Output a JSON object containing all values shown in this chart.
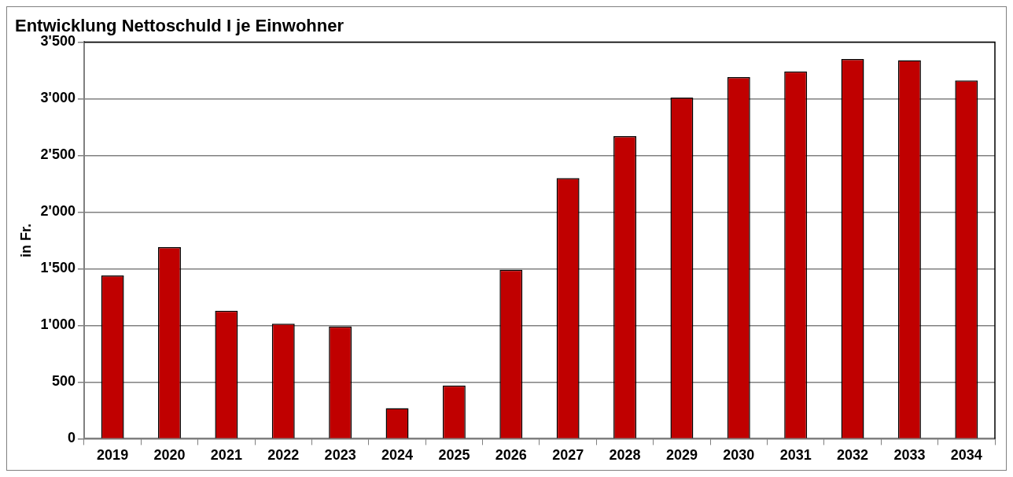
{
  "chart_data": {
    "type": "bar",
    "title": "Entwicklung Nettoschuld I je Einwohner",
    "ylabel": "in Fr.",
    "categories": [
      "2019",
      "2020",
      "2021",
      "2022",
      "2023",
      "2024",
      "2025",
      "2026",
      "2027",
      "2028",
      "2029",
      "2030",
      "2031",
      "2032",
      "2033",
      "2034"
    ],
    "values": [
      1440,
      1690,
      1130,
      1015,
      990,
      270,
      470,
      1490,
      2300,
      2670,
      3010,
      3190,
      3240,
      3350,
      3340,
      3160
    ],
    "color": "#c00000",
    "ylim": [
      0,
      3500
    ],
    "yticks": [
      0,
      500,
      {
        "value": 1000,
        "label": "1'000"
      },
      {
        "value": 1500,
        "label": "1'500"
      },
      {
        "value": 2000,
        "label": "2'000"
      },
      {
        "value": 2500,
        "label": "2'500"
      },
      {
        "value": 3000,
        "label": "3'000"
      },
      {
        "value": 3500,
        "label": "3'500"
      }
    ],
    "grid": "y",
    "legend": false
  }
}
